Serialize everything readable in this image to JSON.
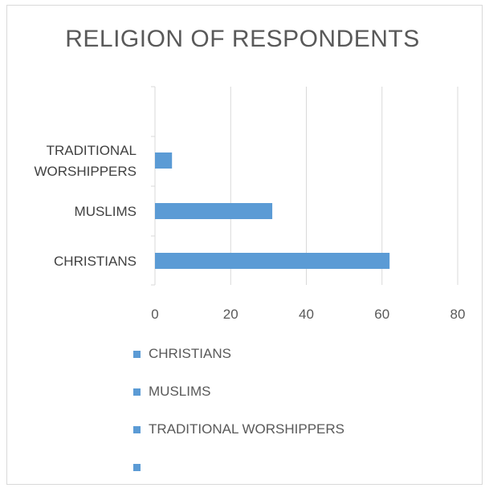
{
  "chart_data": {
    "type": "bar",
    "orientation": "horizontal",
    "title": "RELIGION OF RESPONDENTS",
    "categories": [
      "CHRISTIANS",
      "MUSLIMS",
      "TRADITIONAL WORSHIPPERS"
    ],
    "category_lines": [
      [
        "CHRISTIANS"
      ],
      [
        "MUSLIMS"
      ],
      [
        "TRADITIONAL",
        "WORSHIPPERS"
      ]
    ],
    "values": [
      62,
      31,
      4.5
    ],
    "xlim": [
      0,
      80
    ],
    "xticks": [
      "0",
      "20",
      "40",
      "60",
      "80"
    ],
    "grid": "vertical",
    "legend": {
      "placement": "bottom",
      "entries": [
        "CHRISTIANS",
        "MUSLIMS",
        "TRADITIONAL WORSHIPPERS",
        ""
      ]
    }
  },
  "colors": {
    "bar": "#5b9bd5",
    "grid": "#d9d9d9",
    "text": "#595959"
  }
}
